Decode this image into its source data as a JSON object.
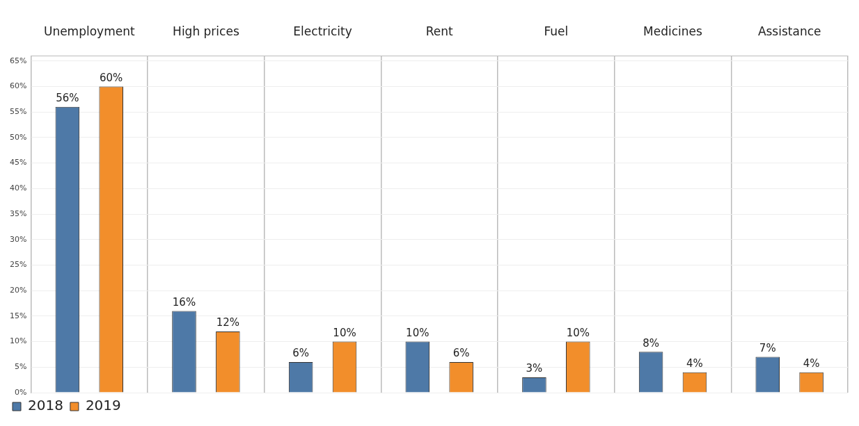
{
  "chart_data": {
    "type": "bar",
    "categories": [
      "Unemployment",
      "High prices",
      "Electricity",
      "Rent",
      "Fuel",
      "Medicines",
      "Assistance"
    ],
    "series": [
      {
        "name": "2018",
        "color": "#4e79a7",
        "values": [
          56,
          16,
          6,
          10,
          3,
          8,
          7
        ],
        "value_labels": [
          "56%",
          "16%",
          "6%",
          "10%",
          "3%",
          "8%",
          "7%"
        ]
      },
      {
        "name": "2019",
        "color": "#f28e2b",
        "values": [
          60,
          12,
          10,
          6,
          10,
          4,
          4
        ],
        "value_labels": [
          "60%",
          "12%",
          "10%",
          "6%",
          "10%",
          "4%",
          "4%"
        ]
      }
    ],
    "ylim": [
      0,
      66
    ],
    "yticks": [
      {
        "value": 0,
        "label": "0%"
      },
      {
        "value": 5,
        "label": "5%"
      },
      {
        "value": 10,
        "label": "10%"
      },
      {
        "value": 15,
        "label": "15%"
      },
      {
        "value": 20,
        "label": "20%"
      },
      {
        "value": 25,
        "label": "25%"
      },
      {
        "value": 30,
        "label": "30%"
      },
      {
        "value": 35,
        "label": "35%"
      },
      {
        "value": 40,
        "label": "40%"
      },
      {
        "value": 45,
        "label": "45%"
      },
      {
        "value": 50,
        "label": "50%"
      },
      {
        "value": 55,
        "label": "55%"
      },
      {
        "value": 60,
        "label": "60%"
      },
      {
        "value": 65,
        "label": "65%"
      }
    ],
    "grid": true,
    "legend": "bottom left"
  }
}
